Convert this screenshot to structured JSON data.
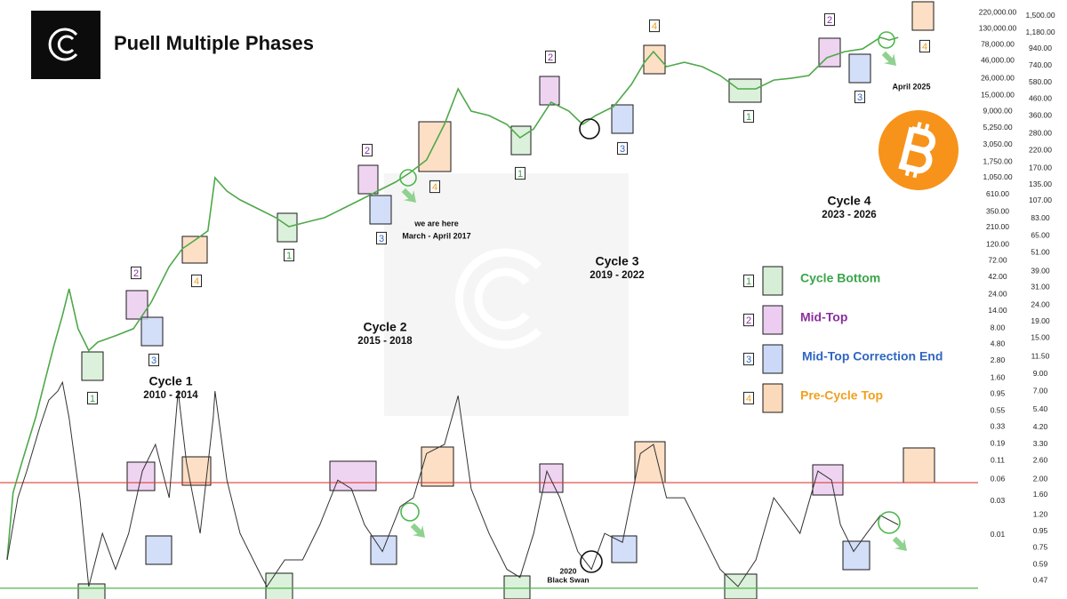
{
  "chart_data": {
    "type": "line",
    "title": "Puell Multiple Phases",
    "log_scale": true,
    "xlim": [
      2010.38,
      2026.8
    ],
    "ylim": [
      0.00125,
      330000
    ],
    "y2lim": [
      0.36,
      1885
    ],
    "yticks": [
      {
        "value": 220000,
        "label": "220,000.00"
      },
      {
        "value": 130000,
        "label": "130,000.00"
      },
      {
        "value": 78000,
        "label": "78,000.00"
      },
      {
        "value": 46000,
        "label": "46,000.00"
      },
      {
        "value": 26000,
        "label": "26,000.00"
      },
      {
        "value": 15000,
        "label": "15,000.00"
      },
      {
        "value": 9000,
        "label": "9,000.00"
      },
      {
        "value": 5250,
        "label": "5,250.00"
      },
      {
        "value": 3050,
        "label": "3,050.00"
      },
      {
        "value": 1750,
        "label": "1,750.00"
      },
      {
        "value": 1050,
        "label": "1,050.00"
      },
      {
        "value": 610,
        "label": "610.00"
      },
      {
        "value": 350,
        "label": "350.00"
      },
      {
        "value": 210,
        "label": "210.00"
      },
      {
        "value": 120,
        "label": "120.00"
      },
      {
        "value": 72,
        "label": "72.00"
      },
      {
        "value": 42,
        "label": "42.00"
      },
      {
        "value": 24,
        "label": "24.00"
      },
      {
        "value": 14,
        "label": "14.00"
      },
      {
        "value": 8,
        "label": "8.00"
      },
      {
        "value": 4.8,
        "label": "4.80"
      },
      {
        "value": 2.8,
        "label": "2.80"
      },
      {
        "value": 1.6,
        "label": "1.60"
      },
      {
        "value": 0.95,
        "label": "0.95"
      },
      {
        "value": 0.55,
        "label": "0.55"
      },
      {
        "value": 0.33,
        "label": "0.33"
      },
      {
        "value": 0.19,
        "label": "0.19"
      },
      {
        "value": 0.11,
        "label": "0.11"
      },
      {
        "value": 0.06,
        "label": "0.06"
      },
      {
        "value": 0.03,
        "label": "0.03"
      },
      {
        "value": 0.01,
        "label": "0.01"
      }
    ],
    "y2ticks": [
      {
        "value": 1500,
        "label": "1,500.00"
      },
      {
        "value": 1180,
        "label": "1,180.00"
      },
      {
        "value": 940,
        "label": "940.00"
      },
      {
        "value": 740,
        "label": "740.00"
      },
      {
        "value": 580,
        "label": "580.00"
      },
      {
        "value": 460,
        "label": "460.00"
      },
      {
        "value": 360,
        "label": "360.00"
      },
      {
        "value": 280,
        "label": "280.00"
      },
      {
        "value": 220,
        "label": "220.00"
      },
      {
        "value": 170,
        "label": "170.00"
      },
      {
        "value": 135,
        "label": "135.00"
      },
      {
        "value": 107,
        "label": "107.00"
      },
      {
        "value": 83,
        "label": "83.00"
      },
      {
        "value": 65,
        "label": "65.00"
      },
      {
        "value": 51,
        "label": "51.00"
      },
      {
        "value": 39,
        "label": "39.00"
      },
      {
        "value": 31,
        "label": "31.00"
      },
      {
        "value": 24,
        "label": "24.00"
      },
      {
        "value": 19,
        "label": "19.00"
      },
      {
        "value": 15,
        "label": "15.00"
      },
      {
        "value": 11.5,
        "label": "11.50"
      },
      {
        "value": 9,
        "label": "9.00"
      },
      {
        "value": 7,
        "label": "7.00"
      },
      {
        "value": 5.4,
        "label": "5.40"
      },
      {
        "value": 4.2,
        "label": "4.20"
      },
      {
        "value": 3.3,
        "label": "3.30"
      },
      {
        "value": 2.6,
        "label": "2.60"
      },
      {
        "value": 2,
        "label": "2.00"
      },
      {
        "value": 1.6,
        "label": "1.60"
      },
      {
        "value": 1.2,
        "label": "1.20"
      },
      {
        "value": 0.95,
        "label": "0.95"
      },
      {
        "value": 0.75,
        "label": "0.75"
      },
      {
        "value": 0.59,
        "label": "0.59"
      },
      {
        "value": 0.47,
        "label": "0.47"
      }
    ],
    "series": [
      {
        "color": "#4fa84a",
        "x": [
          2010.5,
          2010.6,
          2010.75,
          2010.98,
          2011.13,
          2011.28,
          2011.43,
          2011.54,
          2011.69,
          2011.87,
          2012.02,
          2012.32,
          2012.62,
          2012.92,
          2013.22,
          2013.44,
          2013.66,
          2013.87,
          2013.99,
          2014.19,
          2014.41,
          2014.71,
          2015.01,
          2015.23,
          2015.53,
          2015.83,
          2016.13,
          2016.43,
          2016.72,
          2017.02,
          2017.25,
          2017.54,
          2017.84,
          2018.07,
          2018.29,
          2018.59,
          2018.89,
          2019.11,
          2019.34,
          2019.63,
          2019.93,
          2020.16,
          2020.38,
          2020.68,
          2020.98,
          2021.2,
          2021.35,
          2021.57,
          2021.87,
          2022.17,
          2022.47,
          2022.77,
          2023.07,
          2023.37,
          2023.66,
          2023.96,
          2024.26,
          2024.56,
          2024.86,
          2025.16,
          2025.31,
          2025.46
        ],
        "values": [
          0.0045,
          0.039,
          0.106,
          0.45,
          1.41,
          4.4,
          12.2,
          28.8,
          7.9,
          3.9,
          5.1,
          6.3,
          7.9,
          18.7,
          59,
          105,
          140,
          187,
          1047,
          680,
          511,
          383,
          287,
          215,
          249,
          287,
          383,
          511,
          680,
          908,
          1211,
          1862,
          5875,
          18580,
          9040,
          7830,
          5875,
          3820,
          5090,
          12050,
          9040,
          5875,
          7830,
          10450,
          21430,
          43950,
          62100,
          38100,
          43950,
          38100,
          28600,
          18580,
          18580,
          24700,
          26200,
          28600,
          50800,
          62100,
          67600,
          98400,
          90200,
          98400
        ]
      },
      {
        "color": "#333333",
        "axis": "y2",
        "x": [
          2010.5,
          2010.68,
          2010.83,
          2011.05,
          2011.2,
          2011.35,
          2011.43,
          2011.54,
          2011.72,
          2011.87,
          2012.1,
          2012.32,
          2012.54,
          2012.77,
          2012.99,
          2013.22,
          2013.37,
          2013.51,
          2013.74,
          2013.96,
          2013.99,
          2014.19,
          2014.41,
          2014.71,
          2014.86,
          2015.16,
          2015.46,
          2015.75,
          2016.05,
          2016.28,
          2016.5,
          2016.8,
          2017.1,
          2017.32,
          2017.54,
          2017.84,
          2018.07,
          2018.29,
          2018.59,
          2018.89,
          2019.11,
          2019.34,
          2019.56,
          2019.78,
          2020.08,
          2020.31,
          2020.53,
          2020.83,
          2021.13,
          2021.35,
          2021.57,
          2021.87,
          2022.17,
          2022.47,
          2022.77,
          2023.07,
          2023.37,
          2023.59,
          2023.81,
          2024.11,
          2024.34,
          2024.49,
          2024.71,
          2024.93,
          2025.16,
          2025.46
        ],
        "values": [
          0.63,
          1.53,
          2.24,
          4.23,
          6.19,
          7.03,
          7.98,
          4.8,
          1.53,
          0.43,
          0.92,
          0.55,
          0.92,
          2.24,
          3.28,
          1.53,
          7.03,
          2.54,
          0.92,
          4.8,
          7.03,
          1.97,
          0.92,
          0.55,
          0.43,
          0.63,
          0.63,
          1.04,
          1.97,
          1.74,
          1.04,
          0.71,
          1.35,
          1.53,
          2.88,
          3.28,
          6.59,
          1.74,
          0.92,
          0.55,
          0.49,
          0.92,
          2.24,
          1.53,
          0.71,
          0.55,
          0.92,
          0.81,
          2.88,
          3.28,
          1.53,
          1.53,
          0.92,
          0.55,
          0.43,
          0.63,
          1.53,
          1.19,
          0.92,
          2.24,
          1.97,
          1.04,
          0.71,
          0.92,
          1.19,
          1.04
        ]
      }
    ],
    "reference_lines": [
      {
        "value": 1.9,
        "color": "#d9423a"
      },
      {
        "value": 0.42,
        "color": "#4cb84c"
      }
    ],
    "phases": [
      {
        "number": "1",
        "name": "Cycle Bottom",
        "color": "#3aa54a",
        "fill": "#d6eed5"
      },
      {
        "number": "2",
        "name": "Mid-Top",
        "color": "#8b2fa0",
        "fill": "#ecccf0"
      },
      {
        "number": "3",
        "name": "Mid-Top Correction End",
        "color": "#2f66c0",
        "fill": "#cbd8f7"
      },
      {
        "number": "4",
        "name": "Pre-Cycle Top",
        "color": "#f0a020",
        "fill": "#fbd9bb"
      }
    ],
    "cycles": [
      {
        "name": "Cycle 1",
        "years": "2010 - 2014"
      },
      {
        "name": "Cycle 2",
        "years": "2015 - 2018"
      },
      {
        "name": "Cycle 3",
        "years": "2019 - 2022"
      },
      {
        "name": "Cycle 4",
        "years": "2023 - 2026"
      }
    ],
    "annotations": [
      "we are here",
      "March - April 2017",
      "April 2025",
      "2020",
      "Black Swan"
    ]
  }
}
